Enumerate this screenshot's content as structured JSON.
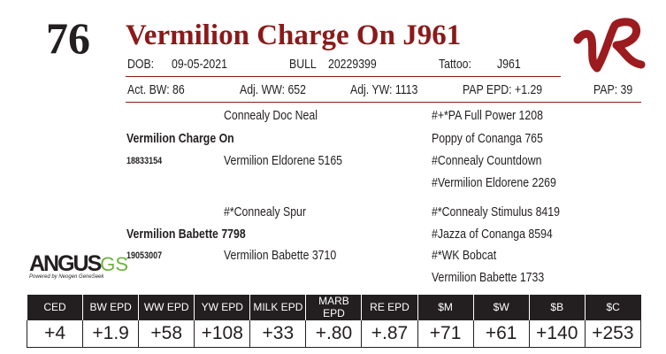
{
  "lot": "76",
  "title": "Vermilion Charge On J961",
  "info": {
    "dob_label": "DOB:",
    "dob": "09-05-2021",
    "sex": "BULL",
    "registration": "20229399",
    "tattoo_label": "Tattoo:",
    "tattoo": "J961"
  },
  "performance": [
    "Act. BW: 86",
    "Adj. WW: 652",
    "Adj. YW: 1113",
    "PAP EPD: +1.29",
    "PAP: 39"
  ],
  "pedigree": {
    "sire": {
      "name": "Vermilion Charge On",
      "registration": "18833154",
      "sire": "Connealy Doc Neal",
      "dam": "Vermilion Eldorene 5165",
      "grand": [
        "#+*PA Full Power 1208",
        "Poppy of Conanga 765",
        "#Connealy Countdown",
        "#Vermilion Eldorene 2269"
      ]
    },
    "dam": {
      "name": "Vermilion Babette 7798",
      "registration": "19053007",
      "sire": "#*Connealy Spur",
      "dam": "Vermilion Babette 3710",
      "grand": [
        "#*Connealy Stimulus 8419",
        "#Jazza of Conanga 8594",
        "#*WK Bobcat",
        "Vermilion Babette 1733"
      ]
    }
  },
  "logo": {
    "angus": "ANGUS",
    "gs": "GS",
    "tagline": "Powered by Neogen GeneSeek"
  },
  "epd_table": {
    "headers": [
      "CED",
      "BW EPD",
      "WW EPD",
      "YW EPD",
      "MILK EPD",
      "MARB EPD",
      "RE EPD",
      "$M",
      "$W",
      "$B",
      "$C"
    ],
    "values": [
      "+4",
      "+1.9",
      "+58",
      "+108",
      "+33",
      "+.80",
      "+.87",
      "+71",
      "+61",
      "+140",
      "+253"
    ]
  }
}
